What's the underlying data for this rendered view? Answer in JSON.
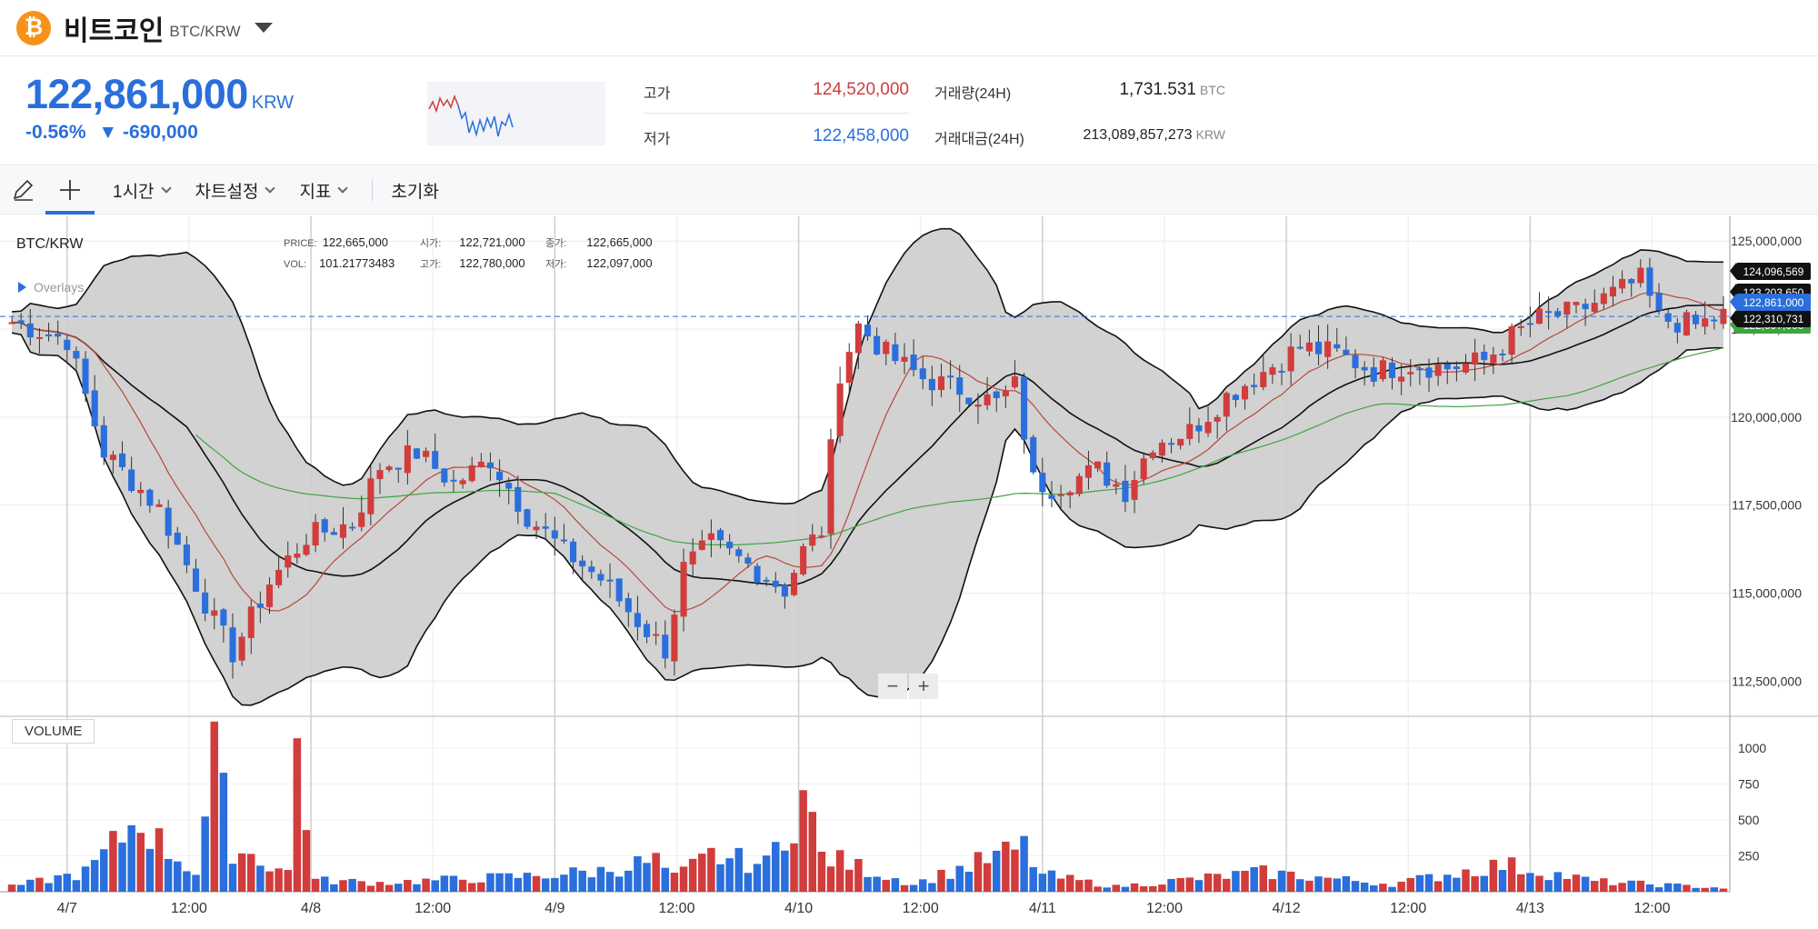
{
  "header": {
    "coin_symbol": "₿",
    "coin_name": "비트코인",
    "pair": "BTC/KRW",
    "brand_color": "#f7931a"
  },
  "ticker": {
    "price": "122,861,000",
    "price_unit": "KRW",
    "change_pct": "-0.56%",
    "change_amt": "▼ -690,000",
    "high_label": "고가",
    "high_value": "124,520,000",
    "low_label": "저가",
    "low_value": "122,458,000",
    "volume_label": "거래량(24H)",
    "volume_value": "1,731.531",
    "volume_unit": "BTC",
    "turnover_label": "거래대금(24H)",
    "turnover_value": "213,089,857,273",
    "turnover_unit": "KRW",
    "up_color": "#d13c3c",
    "down_color": "#2a6fdb"
  },
  "toolbar": {
    "draw_icon": "pencil-icon",
    "crosshair_icon": "crosshair-icon",
    "interval": "1시간",
    "chart_settings": "차트설정",
    "indicators": "지표",
    "reset": "초기화"
  },
  "chart": {
    "pair_label": "BTC/KRW",
    "overlays_label": "Overlays",
    "ohlc": {
      "price_k": "PRICE:",
      "price_v": "122,665,000",
      "open_k": "시가:",
      "open_v": "122,721,000",
      "close_k": "종가:",
      "close_v": "122,665,000",
      "vol_k": "VOL:",
      "vol_v": "101.21773483",
      "high_k": "고가:",
      "high_v": "122,780,000",
      "low_k": "저가:",
      "low_v": "122,097,000"
    },
    "zoom_out": "−",
    "zoom_in": "+",
    "volume_label": "VOLUME",
    "price_tags": {
      "bb_upper": "124,096,569",
      "ma_red": "123,203,650",
      "current": "122,861,000",
      "bb_mid": "122,310,731",
      "ma_green": "122,097,000"
    }
  },
  "chart_data": {
    "type": "candlestick",
    "title": "BTC/KRW",
    "y_ticks": [
      "125,000,000",
      "122,500,000",
      "120,000,000",
      "117,500,000",
      "115,000,000",
      "112,500,000"
    ],
    "y_values": [
      125000000,
      122500000,
      120000000,
      117500000,
      115000000,
      112500000
    ],
    "ylim": [
      111500000,
      125600000
    ],
    "x_ticks": [
      "4/7",
      "12:00",
      "4/8",
      "12:00",
      "4/9",
      "12:00",
      "4/10",
      "12:00",
      "4/11",
      "12:00",
      "4/12",
      "12:00",
      "4/13",
      "12:00"
    ],
    "vol_ticks": [
      "1000",
      "750",
      "500",
      "250"
    ],
    "vol_values": [
      1000,
      750,
      500,
      250
    ],
    "vol_ylim": [
      0,
      1220
    ],
    "current_price": 122861000,
    "close_path": [
      [
        0,
        122700000
      ],
      [
        6,
        122200000
      ],
      [
        10,
        119000000
      ],
      [
        16,
        117400000
      ],
      [
        22,
        114200000
      ],
      [
        24,
        113300000
      ],
      [
        28,
        115300000
      ],
      [
        32,
        116600000
      ],
      [
        37,
        117000000
      ],
      [
        40,
        118600000
      ],
      [
        44,
        119000000
      ],
      [
        48,
        118100000
      ],
      [
        52,
        118800000
      ],
      [
        56,
        117200000
      ],
      [
        60,
        116200000
      ],
      [
        64,
        115400000
      ],
      [
        68,
        114200000
      ],
      [
        71,
        113400000
      ],
      [
        73,
        115700000
      ],
      [
        76,
        116400000
      ],
      [
        80,
        115800000
      ],
      [
        84,
        115100000
      ],
      [
        86,
        116200000
      ],
      [
        88,
        116800000
      ],
      [
        90,
        121300000
      ],
      [
        92,
        122600000
      ],
      [
        95,
        121800000
      ],
      [
        99,
        121100000
      ],
      [
        103,
        120800000
      ],
      [
        107,
        120400000
      ],
      [
        109,
        120900000
      ],
      [
        111,
        118200000
      ],
      [
        113,
        118000000
      ],
      [
        118,
        118500000
      ],
      [
        121,
        117900000
      ],
      [
        124,
        119300000
      ],
      [
        128,
        119600000
      ],
      [
        132,
        120600000
      ],
      [
        136,
        121300000
      ],
      [
        140,
        122000000
      ],
      [
        144,
        121800000
      ],
      [
        148,
        121300000
      ],
      [
        152,
        121500000
      ],
      [
        156,
        121400000
      ],
      [
        160,
        121600000
      ],
      [
        163,
        122300000
      ],
      [
        166,
        122800000
      ],
      [
        170,
        123000000
      ],
      [
        174,
        123500000
      ],
      [
        177,
        123900000
      ],
      [
        179,
        122800000
      ],
      [
        183,
        122600000
      ],
      [
        186,
        122900000
      ]
    ],
    "volume_profile": [
      [
        0,
        40
      ],
      [
        8,
        150
      ],
      [
        10,
        280
      ],
      [
        14,
        580
      ],
      [
        16,
        380
      ],
      [
        20,
        150
      ],
      [
        22,
        1000
      ],
      [
        24,
        350
      ],
      [
        30,
        150
      ],
      [
        31,
        1170
      ],
      [
        33,
        90
      ],
      [
        40,
        70
      ],
      [
        56,
        120
      ],
      [
        64,
        160
      ],
      [
        70,
        240
      ],
      [
        72,
        110
      ],
      [
        76,
        280
      ],
      [
        82,
        210
      ],
      [
        86,
        740
      ],
      [
        88,
        280
      ],
      [
        98,
        60
      ],
      [
        110,
        340
      ],
      [
        112,
        130
      ],
      [
        120,
        40
      ],
      [
        136,
        150
      ],
      [
        150,
        60
      ],
      [
        162,
        210
      ],
      [
        166,
        160
      ],
      [
        172,
        80
      ],
      [
        186,
        30
      ]
    ],
    "series": [
      {
        "name": "BB upper",
        "color": "#111111"
      },
      {
        "name": "BB lower",
        "color": "#111111"
      },
      {
        "name": "BB mid",
        "color": "#111111"
      },
      {
        "name": "MA short",
        "color": "#b8473a"
      },
      {
        "name": "MA long",
        "color": "#3fa43f"
      }
    ]
  }
}
